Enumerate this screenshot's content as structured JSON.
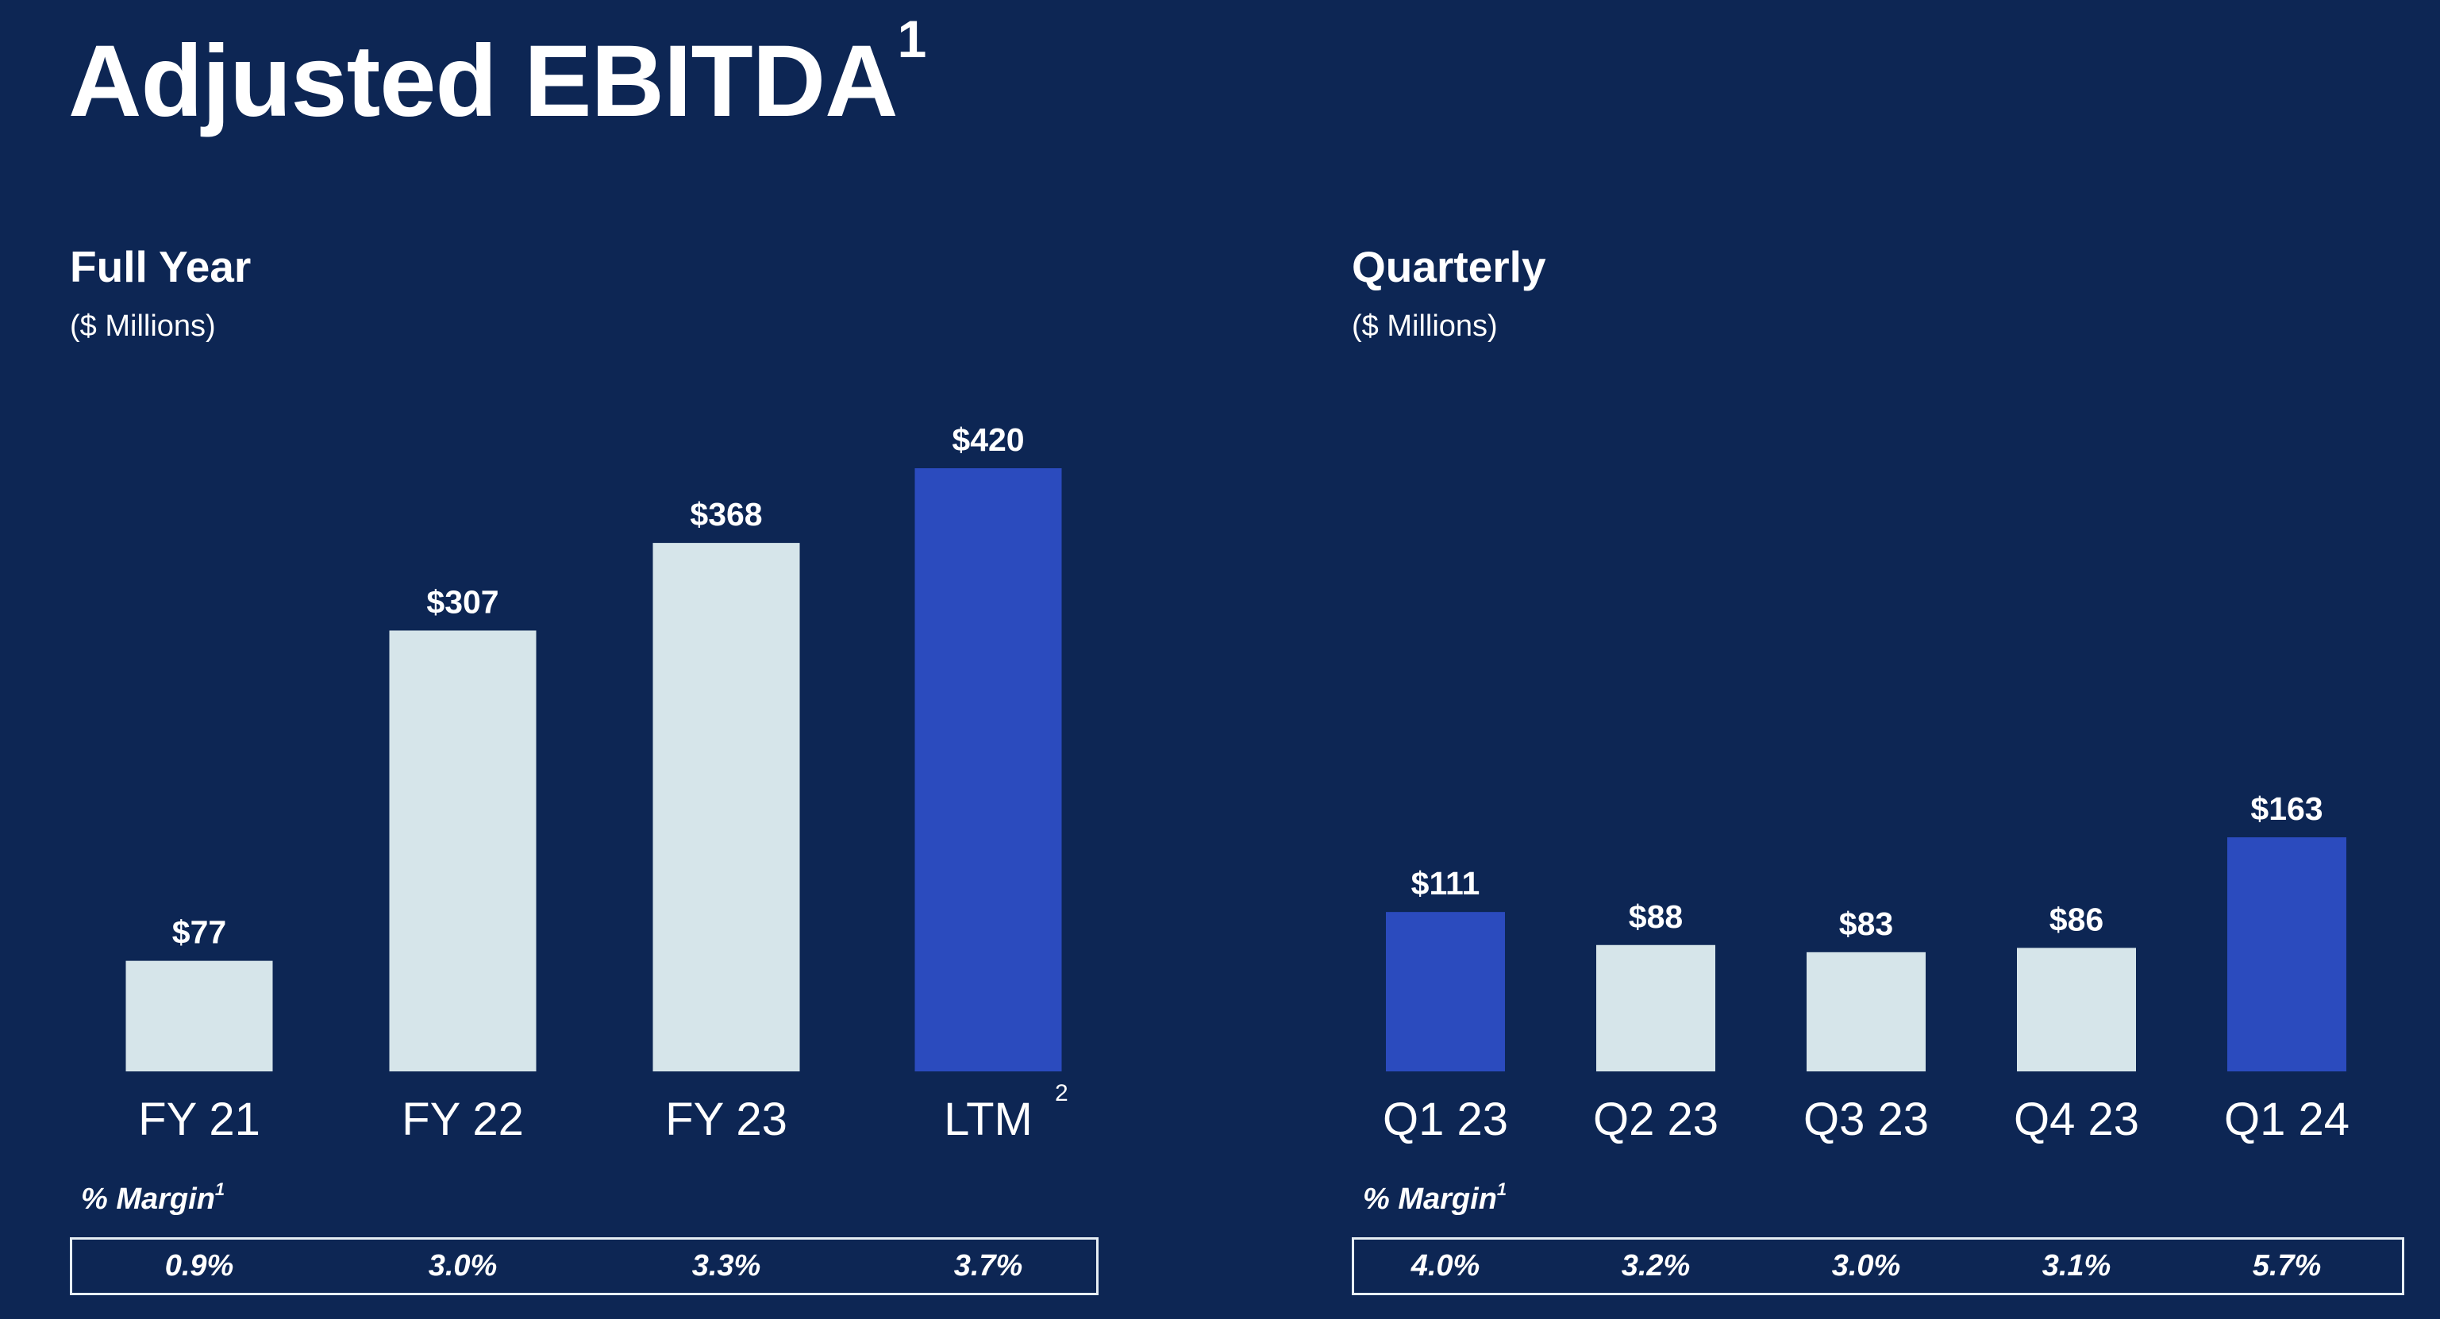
{
  "header": {
    "title": "Adjusted EBITDA",
    "title_footnote": "1"
  },
  "colors": {
    "background": "#0d2654",
    "bar_light": "#d6e5ea",
    "bar_highlight": "#2b4bbe",
    "text": "#ffffff"
  },
  "chart_data": [
    {
      "type": "bar",
      "title": "Full Year",
      "subtitle": "($ Millions)",
      "categories": [
        "FY 21",
        "FY 22",
        "FY 23",
        "LTM"
      ],
      "category_footnotes": [
        "",
        "",
        "",
        "2"
      ],
      "values": [
        77,
        307,
        368,
        420
      ],
      "value_labels": [
        "$77",
        "$307",
        "$368",
        "$420"
      ],
      "highlighted": [
        false,
        false,
        false,
        true
      ],
      "margin_label": "% Margin",
      "margin_footnote": "1",
      "margins": [
        "0.9%",
        "3.0%",
        "3.3%",
        "3.7%"
      ]
    },
    {
      "type": "bar",
      "title": "Quarterly",
      "subtitle": "($ Millions)",
      "categories": [
        "Q1 23",
        "Q2 23",
        "Q3 23",
        "Q4 23",
        "Q1 24"
      ],
      "category_footnotes": [
        "",
        "",
        "",
        "",
        ""
      ],
      "values": [
        111,
        88,
        83,
        86,
        163
      ],
      "value_labels": [
        "$111",
        "$88",
        "$83",
        "$86",
        "$163"
      ],
      "highlighted": [
        true,
        false,
        false,
        false,
        true
      ],
      "margin_label": "% Margin",
      "margin_footnote": "1",
      "margins": [
        "4.0%",
        "3.2%",
        "3.0%",
        "3.1%",
        "5.7%"
      ]
    }
  ]
}
